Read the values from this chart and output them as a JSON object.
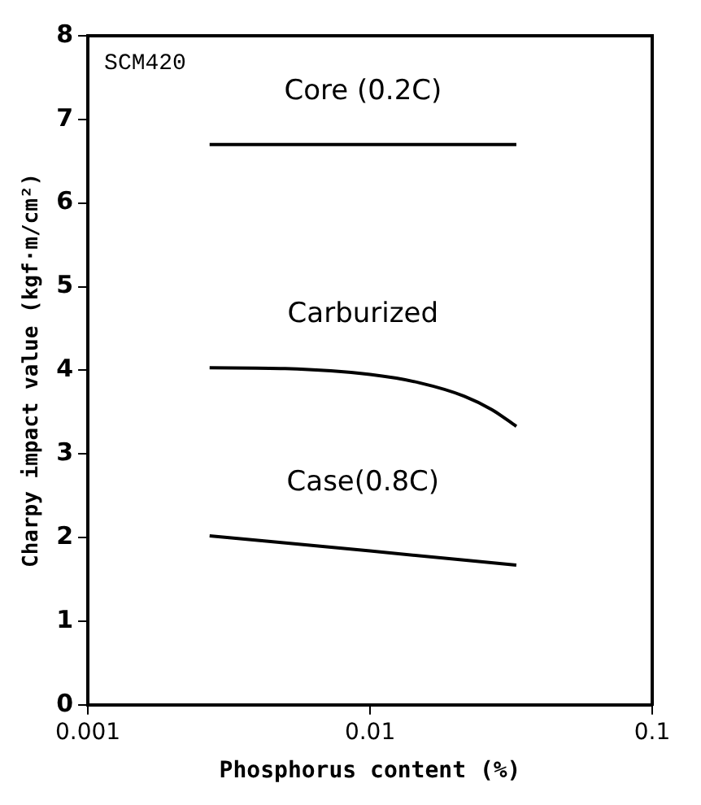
{
  "chart_data": {
    "type": "line",
    "xlabel": "Phosphorus content (%)",
    "ylabel": "Charpy impact value (kgf·m/cm²)",
    "annotations": [
      "SCM420"
    ],
    "series": [
      {
        "name": "Core (0.2C)",
        "color": "#000000",
        "x": [
          0.0027,
          0.033
        ],
        "values": [
          6.7,
          6.7
        ]
      },
      {
        "name": "Carburized",
        "color": "#000000",
        "x": [
          0.0027,
          0.005,
          0.01,
          0.015,
          0.0216,
          0.027,
          0.033
        ],
        "values": [
          4.03,
          4.02,
          3.95,
          3.85,
          3.69,
          3.53,
          3.33
        ]
      },
      {
        "name": "Case(0.8C)",
        "color": "#000000",
        "x": [
          0.0027,
          0.01,
          0.033
        ],
        "values": [
          2.02,
          1.84,
          1.67
        ]
      }
    ],
    "log": "x",
    "xlim": [
      0.001,
      0.1
    ],
    "xticks": [
      0.001,
      0.01,
      0.1
    ],
    "ylim": [
      0,
      8
    ],
    "yticks": [
      0,
      1,
      2,
      3,
      4,
      5,
      6,
      7,
      8
    ],
    "grid": false,
    "legend": false,
    "marker": "none",
    "line_style": "solid"
  }
}
